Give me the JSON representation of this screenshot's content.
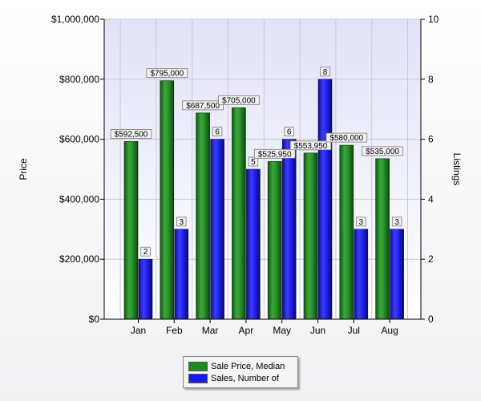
{
  "chart_data": {
    "type": "bar",
    "categories": [
      "Jan",
      "Feb",
      "Mar",
      "Apr",
      "May",
      "Jun",
      "Jul",
      "Aug"
    ],
    "series": [
      {
        "name": "Sale Price, Median",
        "axis": "left",
        "color": "#1f8a1f",
        "values": [
          592500,
          795000,
          687500,
          705000,
          525950,
          553950,
          580000,
          535000
        ],
        "labels": [
          "$592,500",
          "$795,000",
          "$687,500",
          "$705,000",
          "$525,950",
          "$553,950",
          "$580,000",
          "$535,000"
        ]
      },
      {
        "name": "Sales, Number of",
        "axis": "right",
        "color": "#1a1aee",
        "values": [
          2,
          3,
          6,
          5,
          6,
          8,
          3,
          3
        ],
        "labels": [
          "2",
          "3",
          "6",
          "5",
          "6",
          "8",
          "3",
          "3"
        ]
      }
    ],
    "ylabel": "Price",
    "y2label": "Listings",
    "ylim": [
      0,
      1000000
    ],
    "y2lim": [
      0,
      10
    ],
    "yticks": [
      "$0",
      "$200,000",
      "$400,000",
      "$600,000",
      "$800,000",
      "$1,000,000"
    ],
    "y2ticks": [
      "0",
      "2",
      "4",
      "6",
      "8",
      "10"
    ],
    "grid": true,
    "legend_position": "bottom-center"
  }
}
